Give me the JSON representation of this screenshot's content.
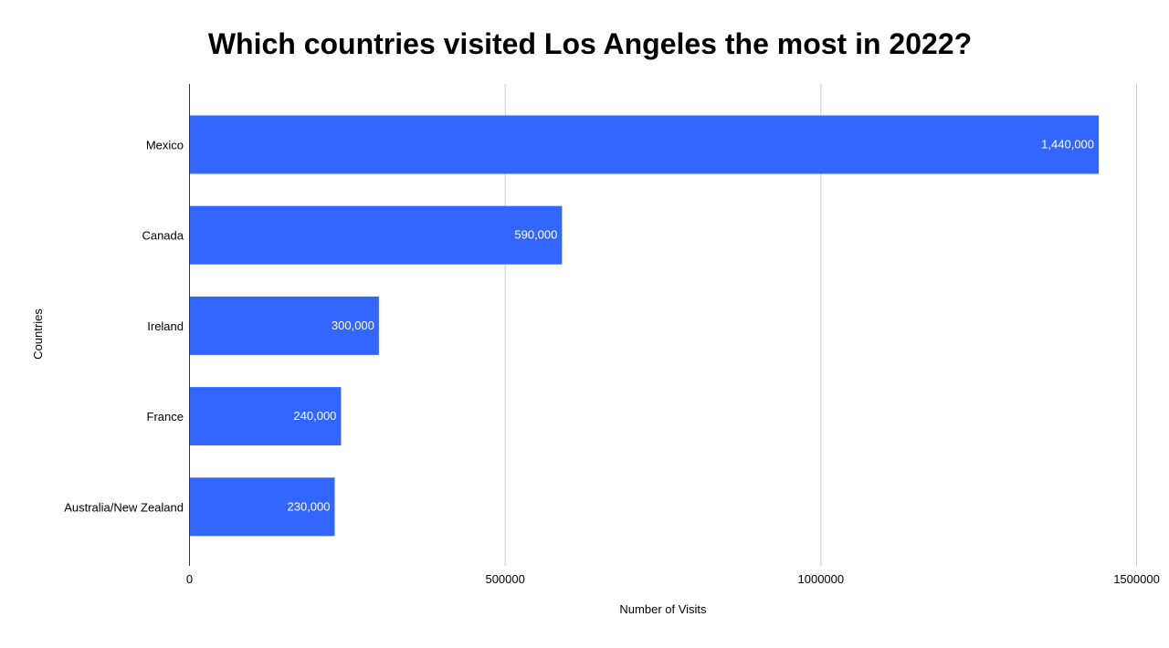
{
  "chart_data": {
    "type": "bar",
    "orientation": "horizontal",
    "title": "Which countries visited Los Angeles the most in 2022?",
    "xlabel": "Number of Visits",
    "ylabel": "Countries",
    "categories": [
      "Mexico",
      "Canada",
      "Ireland",
      "France",
      "Australia/New Zealand"
    ],
    "values": [
      1440000,
      590000,
      300000,
      240000,
      230000
    ],
    "value_labels": [
      "1,440,000",
      "590,000",
      "300,000",
      "240,000",
      "230,000"
    ],
    "xlim": [
      0,
      1500000
    ],
    "xticks": [
      0,
      500000,
      1000000,
      1500000
    ],
    "xtick_labels": [
      "0",
      "500000",
      "1000000",
      "1500000"
    ],
    "grid": true,
    "legend": "none",
    "bar_color": "#3366ff"
  }
}
